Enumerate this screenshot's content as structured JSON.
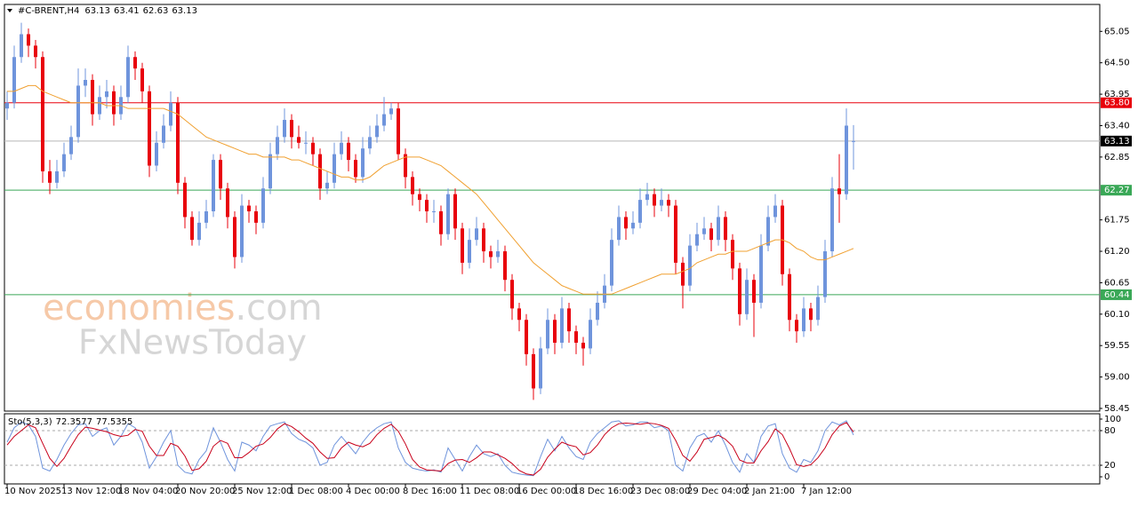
{
  "chart_data": {
    "type": "candlestick",
    "symbol": "#C-BRENT,H4",
    "categories": [
      "10 Nov 2025",
      null,
      null,
      null,
      null,
      null,
      null,
      null,
      "13 Nov 12:00",
      null,
      null,
      null,
      null,
      null,
      null,
      null,
      "18 Nov 04:00",
      null,
      null,
      null,
      null,
      null,
      null,
      null,
      "20 Nov 20:00",
      null,
      null,
      null,
      null,
      null,
      null,
      null,
      "25 Nov 12:00",
      null,
      null,
      null,
      null,
      null,
      null,
      null,
      "1 Dec 08:00",
      null,
      null,
      null,
      null,
      null,
      null,
      null,
      "4 Dec 00:00",
      null,
      null,
      null,
      null,
      null,
      null,
      null,
      "8 Dec 16:00",
      null,
      null,
      null,
      null,
      null,
      null,
      null,
      "11 Dec 08:00",
      null,
      null,
      null,
      null,
      null,
      null,
      null,
      "16 Dec 00:00",
      null,
      null,
      null,
      null,
      null,
      null,
      null,
      "18 Dec 16:00",
      null,
      null,
      null,
      null,
      null,
      null,
      null,
      "23 Dec 08:00",
      null,
      null,
      null,
      null,
      null,
      null,
      null,
      "29 Dec 04:00",
      null,
      null,
      null,
      null,
      null,
      null,
      null,
      "2 Jan 21:00",
      null,
      null,
      null,
      null,
      null,
      null,
      null,
      "7 Jan 12:00",
      null,
      null,
      null,
      null,
      null,
      null,
      null
    ],
    "open": [
      63.7,
      63.8,
      64.6,
      65.0,
      64.8,
      64.6,
      62.6,
      62.4,
      62.6,
      62.9,
      63.2,
      64.1,
      64.2,
      63.6,
      63.9,
      64.0,
      63.6,
      63.9,
      64.6,
      64.4,
      64.0,
      62.7,
      63.1,
      63.4,
      63.8,
      62.4,
      61.8,
      61.4,
      61.7,
      61.9,
      62.8,
      62.3,
      61.8,
      61.1,
      62.0,
      61.9,
      61.7,
      62.3,
      62.9,
      63.2,
      63.5,
      63.2,
      63.1,
      63.1,
      62.9,
      62.3,
      62.4,
      62.9,
      63.1,
      62.8,
      62.5,
      63.0,
      63.2,
      63.4,
      63.6,
      63.7,
      62.9,
      62.5,
      62.2,
      62.1,
      61.9,
      61.9,
      61.5,
      62.2,
      61.6,
      61.0,
      61.4,
      61.6,
      61.2,
      61.1,
      61.2,
      60.7,
      60.2,
      60.0,
      59.4,
      58.8,
      59.5,
      60.0,
      59.6,
      60.2,
      59.8,
      59.6,
      59.5,
      60.0,
      60.3,
      60.6,
      61.4,
      61.8,
      61.6,
      61.7,
      62.1,
      62.2,
      62.0,
      62.1,
      62.0,
      61.0,
      60.6,
      61.3,
      61.5,
      61.6,
      61.4,
      61.8,
      61.4,
      60.9,
      60.1,
      60.7,
      60.3,
      61.3,
      61.8,
      62.0,
      60.8,
      60.0,
      59.8,
      60.2,
      60.0,
      60.4,
      61.2,
      62.3,
      62.2,
      63.13
    ],
    "high": [
      64.0,
      64.8,
      65.2,
      65.1,
      64.9,
      64.7,
      62.8,
      62.8,
      63.1,
      63.4,
      64.4,
      64.4,
      64.3,
      64.1,
      64.2,
      64.1,
      64.1,
      64.8,
      64.7,
      64.5,
      64.1,
      63.3,
      63.6,
      64.0,
      63.9,
      62.5,
      61.9,
      61.9,
      62.1,
      62.9,
      62.9,
      62.4,
      61.9,
      62.2,
      62.1,
      62.0,
      62.5,
      63.1,
      63.4,
      63.7,
      63.6,
      63.4,
      63.3,
      63.2,
      63.0,
      62.6,
      63.1,
      63.3,
      63.2,
      62.9,
      63.2,
      63.4,
      63.6,
      63.9,
      63.8,
      63.8,
      63.0,
      62.6,
      62.3,
      62.2,
      62.1,
      62.0,
      62.3,
      62.3,
      61.7,
      61.6,
      61.8,
      61.7,
      61.3,
      61.4,
      61.3,
      60.8,
      60.3,
      60.1,
      59.5,
      59.7,
      60.2,
      60.1,
      60.4,
      60.3,
      59.9,
      59.7,
      60.2,
      60.5,
      60.8,
      61.6,
      62.0,
      61.9,
      61.9,
      62.3,
      62.4,
      62.3,
      62.3,
      62.2,
      62.1,
      61.1,
      61.5,
      61.7,
      61.8,
      61.7,
      62.0,
      61.9,
      61.5,
      61.0,
      60.9,
      60.8,
      61.5,
      62.0,
      62.2,
      62.1,
      60.9,
      60.1,
      60.4,
      60.3,
      60.6,
      61.4,
      62.5,
      62.9,
      63.7,
      63.41
    ],
    "low": [
      63.5,
      63.7,
      64.5,
      64.6,
      64.4,
      62.4,
      62.2,
      62.3,
      62.5,
      62.8,
      63.1,
      63.9,
      63.4,
      63.5,
      63.7,
      63.4,
      63.5,
      63.8,
      64.2,
      63.8,
      62.5,
      62.6,
      63.0,
      63.3,
      62.2,
      61.6,
      61.3,
      61.3,
      61.6,
      61.8,
      62.1,
      61.6,
      60.9,
      61.0,
      61.7,
      61.5,
      61.6,
      62.2,
      62.8,
      63.1,
      63.0,
      63.0,
      62.9,
      62.7,
      62.1,
      62.2,
      62.3,
      62.8,
      62.6,
      62.4,
      62.4,
      62.9,
      63.1,
      63.3,
      63.5,
      62.8,
      62.3,
      62.0,
      61.9,
      61.7,
      61.7,
      61.3,
      61.4,
      61.4,
      60.8,
      60.9,
      61.3,
      61.0,
      60.9,
      61.0,
      60.5,
      60.0,
      59.8,
      59.2,
      58.6,
      58.7,
      59.4,
      59.4,
      59.5,
      59.6,
      59.4,
      59.2,
      59.4,
      59.9,
      60.2,
      60.5,
      61.3,
      61.4,
      61.5,
      61.6,
      62.0,
      61.8,
      61.9,
      61.8,
      60.8,
      60.2,
      60.5,
      61.2,
      61.4,
      61.2,
      61.3,
      61.2,
      60.7,
      59.9,
      60.0,
      59.7,
      60.2,
      61.2,
      61.7,
      60.6,
      59.8,
      59.6,
      59.7,
      59.8,
      59.9,
      60.3,
      61.1,
      61.7,
      62.1,
      62.63
    ],
    "close": [
      63.8,
      64.6,
      65.0,
      64.8,
      64.6,
      62.6,
      62.4,
      62.6,
      62.9,
      63.2,
      64.1,
      64.2,
      63.6,
      63.9,
      64.0,
      63.6,
      63.9,
      64.6,
      64.4,
      64.0,
      62.7,
      63.1,
      63.4,
      63.8,
      62.4,
      61.8,
      61.4,
      61.7,
      61.9,
      62.8,
      62.3,
      61.8,
      61.1,
      62.0,
      61.9,
      61.7,
      62.3,
      62.9,
      63.2,
      63.5,
      63.2,
      63.1,
      63.1,
      62.9,
      62.3,
      62.4,
      62.9,
      63.1,
      62.8,
      62.5,
      63.0,
      63.2,
      63.4,
      63.6,
      63.7,
      62.9,
      62.5,
      62.2,
      62.1,
      61.9,
      61.9,
      61.5,
      62.2,
      61.6,
      61.0,
      61.4,
      61.6,
      61.2,
      61.1,
      61.2,
      60.7,
      60.2,
      60.0,
      59.4,
      58.8,
      59.5,
      60.0,
      59.6,
      60.2,
      59.8,
      59.6,
      59.5,
      60.0,
      60.3,
      60.6,
      61.4,
      61.8,
      61.6,
      61.7,
      62.1,
      62.2,
      62.0,
      62.1,
      62.0,
      61.0,
      60.6,
      61.3,
      61.5,
      61.6,
      61.4,
      61.8,
      61.4,
      60.9,
      60.1,
      60.7,
      60.3,
      61.3,
      61.8,
      62.0,
      60.8,
      60.0,
      59.8,
      60.2,
      60.0,
      60.4,
      61.2,
      62.3,
      62.2,
      63.4,
      63.13
    ],
    "up_color": "#6f94dc",
    "down_color": "#e8000b",
    "ylim": [
      58.403,
      65.521
    ],
    "yticks": [
      65.05,
      {
        "value": 64.5,
        "label": "64.50"
      },
      63.95,
      {
        "value": 63.4,
        "label": "63.40"
      },
      62.85,
      61.75,
      {
        "value": 61.2,
        "label": "61.20"
      },
      60.65,
      {
        "value": 60.1,
        "label": "60.10"
      },
      59.55,
      {
        "value": 59,
        "label": "59.00"
      },
      58.45
    ],
    "levels": [
      {
        "value": 63.8,
        "label": "63.80",
        "color": "#e8000b"
      },
      {
        "value": 63.13,
        "color": "#000000"
      },
      {
        "value": 62.27,
        "color": "#3aa857"
      },
      {
        "value": 60.44,
        "color": "#3aa857"
      }
    ],
    "ma": {
      "color": "#f0a030",
      "values": [
        64.0,
        64.0,
        64.05,
        64.1,
        64.1,
        64.0,
        63.95,
        63.9,
        63.85,
        63.8,
        63.8,
        63.8,
        63.8,
        63.8,
        63.75,
        63.75,
        63.75,
        63.7,
        63.7,
        63.7,
        63.7,
        63.7,
        63.7,
        63.65,
        63.6,
        63.5,
        63.4,
        63.3,
        63.2,
        63.15,
        63.1,
        63.05,
        63.0,
        62.95,
        62.9,
        62.9,
        62.85,
        62.85,
        62.85,
        62.85,
        62.8,
        62.8,
        62.75,
        62.7,
        62.65,
        62.6,
        62.55,
        62.5,
        62.5,
        62.45,
        62.45,
        62.5,
        62.6,
        62.7,
        62.75,
        62.8,
        62.85,
        62.85,
        62.85,
        62.8,
        62.75,
        62.7,
        62.6,
        62.5,
        62.4,
        62.3,
        62.2,
        62.05,
        61.9,
        61.75,
        61.6,
        61.45,
        61.3,
        61.15,
        61.0,
        60.9,
        60.8,
        60.7,
        60.6,
        60.55,
        60.5,
        60.45,
        60.45,
        60.45,
        60.45,
        60.45,
        60.5,
        60.55,
        60.6,
        60.65,
        60.7,
        60.75,
        60.8,
        60.8,
        60.8,
        60.85,
        60.9,
        61.0,
        61.05,
        61.1,
        61.15,
        61.15,
        61.2,
        61.2,
        61.2,
        61.25,
        61.3,
        61.35,
        61.4,
        61.4,
        61.35,
        61.25,
        61.2,
        61.1,
        61.05,
        61.05,
        61.1,
        61.15,
        61.2,
        61.25
      ]
    },
    "oscillator": {
      "label": "Sto(5,3,3)",
      "ylim": [
        -12.3,
        109.2
      ],
      "yticks": [
        100,
        80,
        20,
        0
      ],
      "dashed": [
        80,
        20
      ],
      "series": [
        {
          "color": "#6f94dc",
          "values": [
            60,
            85,
            95,
            90,
            70,
            15,
            10,
            30,
            55,
            75,
            90,
            92,
            70,
            80,
            85,
            55,
            70,
            92,
            85,
            60,
            15,
            35,
            60,
            80,
            20,
            8,
            5,
            30,
            45,
            85,
            60,
            30,
            10,
            60,
            55,
            45,
            70,
            88,
            92,
            95,
            75,
            65,
            60,
            50,
            20,
            25,
            55,
            70,
            55,
            40,
            60,
            75,
            85,
            92,
            95,
            50,
            25,
            15,
            12,
            10,
            12,
            8,
            50,
            30,
            10,
            35,
            55,
            40,
            35,
            40,
            20,
            8,
            5,
            3,
            2,
            35,
            65,
            45,
            70,
            50,
            35,
            30,
            60,
            75,
            85,
            95,
            97,
            88,
            90,
            95,
            95,
            85,
            88,
            80,
            20,
            10,
            50,
            70,
            75,
            60,
            80,
            55,
            25,
            8,
            40,
            25,
            70,
            88,
            92,
            40,
            15,
            8,
            30,
            25,
            45,
            80,
            95,
            90,
            97,
            72.3577
          ]
        },
        {
          "color": "#c8001a",
          "values": [
            55,
            70,
            80,
            90,
            85,
            58,
            32,
            18,
            32,
            53,
            73,
            86,
            84,
            81,
            78,
            73,
            70,
            72,
            82,
            79,
            53,
            37,
            37,
            58,
            53,
            36,
            11,
            14,
            27,
            53,
            63,
            58,
            33,
            33,
            42,
            53,
            57,
            68,
            83,
            92,
            87,
            78,
            67,
            58,
            43,
            32,
            33,
            50,
            60,
            55,
            52,
            58,
            73,
            84,
            91,
            79,
            57,
            30,
            17,
            12,
            11,
            10,
            23,
            29,
            30,
            25,
            33,
            43,
            43,
            38,
            32,
            23,
            11,
            5,
            3,
            13,
            34,
            48,
            60,
            55,
            52,
            38,
            42,
            55,
            73,
            85,
            92,
            93,
            92,
            91,
            93,
            92,
            89,
            84,
            63,
            37,
            27,
            43,
            65,
            68,
            72,
            65,
            53,
            29,
            24,
            24,
            45,
            61,
            83,
            73,
            49,
            21,
            18,
            21,
            33,
            50,
            73,
            88,
            94,
            77.5355
          ]
        }
      ]
    }
  },
  "watermark": {
    "brand": "economies",
    "brand_suffix": ".com",
    "second": "FxNewsToday"
  }
}
